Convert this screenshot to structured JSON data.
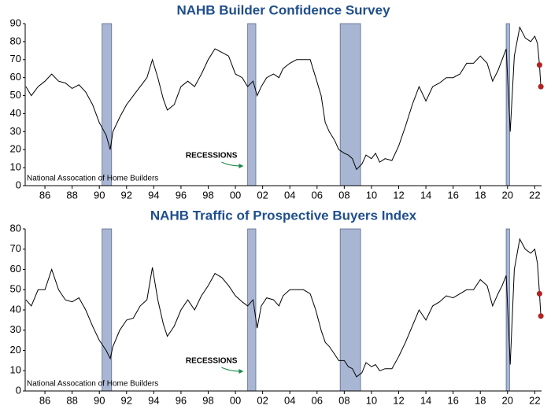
{
  "chart_data": [
    {
      "type": "line",
      "title": "NAHB Builder Confidence Survey",
      "source": "National Assocation of Home Builders",
      "annotation": "RECESSIONS",
      "x": [
        1984.6,
        1985,
        1985.5,
        1986,
        1986.5,
        1987,
        1987.5,
        1988,
        1988.5,
        1989,
        1989.5,
        1990,
        1990.5,
        1990.8,
        1991,
        1991.5,
        1992,
        1992.5,
        1993,
        1993.5,
        1993.9,
        1994.3,
        1994.7,
        1995,
        1995.5,
        1996,
        1996.5,
        1997,
        1997.5,
        1998,
        1998.5,
        1999,
        1999.5,
        2000,
        2000.5,
        2000.9,
        2001.3,
        2001.6,
        2001.9,
        2002.3,
        2002.8,
        2003.2,
        2003.5,
        2004,
        2004.5,
        2005,
        2005.5,
        2005.9,
        2006.3,
        2006.6,
        2006.9,
        2007.3,
        2007.6,
        2008,
        2008.3,
        2008.6,
        2008.9,
        2009.3,
        2009.6,
        2010,
        2010.3,
        2010.6,
        2011,
        2011.5,
        2012,
        2012.5,
        2013,
        2013.5,
        2014,
        2014.5,
        2015,
        2015.5,
        2016,
        2016.5,
        2017,
        2017.5,
        2018,
        2018.5,
        2018.9,
        2019.3,
        2019.6,
        2019.9,
        2020.2,
        2020.5,
        2020.9,
        2021.3,
        2021.7,
        2022,
        2022.2,
        2022.35,
        2022.45
      ],
      "series": [
        {
          "color": "#000000",
          "values": [
            55,
            50,
            55,
            58,
            62,
            58,
            57,
            54,
            56,
            52,
            45,
            35,
            28,
            20,
            30,
            38,
            45,
            50,
            55,
            60,
            70,
            60,
            48,
            42,
            45,
            55,
            58,
            55,
            62,
            70,
            76,
            74,
            72,
            62,
            60,
            55,
            58,
            50,
            55,
            60,
            62,
            60,
            65,
            68,
            70,
            70,
            70,
            60,
            50,
            35,
            30,
            25,
            20,
            18,
            17,
            15,
            9,
            12,
            17,
            15,
            18,
            13,
            15,
            14,
            22,
            33,
            45,
            55,
            47,
            55,
            57,
            60,
            60,
            62,
            68,
            68,
            72,
            68,
            58,
            64,
            70,
            76,
            30,
            72,
            88,
            82,
            80,
            83,
            79,
            67,
            55
          ]
        },
        {
          "color": "#b22222",
          "values": [
            null,
            null,
            null,
            null,
            null,
            null,
            null,
            null,
            null,
            null,
            null,
            null,
            null,
            null,
            null,
            null,
            null,
            null,
            null,
            null,
            null,
            null,
            null,
            null,
            null,
            null,
            null,
            null,
            null,
            null,
            null,
            null,
            null,
            null,
            null,
            null,
            null,
            null,
            null,
            null,
            null,
            null,
            null,
            null,
            null,
            null,
            null,
            null,
            null,
            null,
            null,
            null,
            null,
            null,
            null,
            null,
            null,
            null,
            null,
            null,
            null,
            null,
            null,
            null,
            null,
            null,
            null,
            null,
            null,
            null,
            null,
            null,
            null,
            null,
            null,
            null,
            null,
            null,
            null,
            null,
            null,
            null,
            null,
            null,
            null,
            null,
            null,
            null,
            null,
            67,
            55
          ],
          "style": "points"
        }
      ],
      "recessions": [
        {
          "start": 1990.2,
          "end": 1990.9
        },
        {
          "start": 2000.9,
          "end": 2001.5
        },
        {
          "start": 2007.7,
          "end": 2009.2
        },
        {
          "start": 2019.9,
          "end": 2020.15
        }
      ],
      "xlim": [
        1984.55,
        2022.5
      ],
      "ylim": [
        0,
        90
      ],
      "yticks": [
        0,
        10,
        20,
        30,
        40,
        50,
        60,
        70,
        80,
        90
      ],
      "xticks": [
        {
          "value": 1986,
          "label": "86"
        },
        {
          "value": 1988,
          "label": "88"
        },
        {
          "value": 1990,
          "label": "90"
        },
        {
          "value": 1992,
          "label": "92"
        },
        {
          "value": 1994,
          "label": "94"
        },
        {
          "value": 1996,
          "label": "96"
        },
        {
          "value": 1998,
          "label": "98"
        },
        {
          "value": 2000,
          "label": "00"
        },
        {
          "value": 2002,
          "label": "02"
        },
        {
          "value": 2004,
          "label": "04"
        },
        {
          "value": 2006,
          "label": "06"
        },
        {
          "value": 2008,
          "label": "08"
        },
        {
          "value": 2010,
          "label": "10"
        },
        {
          "value": 2012,
          "label": "12"
        },
        {
          "value": 2014,
          "label": "14"
        },
        {
          "value": 2016,
          "label": "16"
        },
        {
          "value": 2018,
          "label": "18"
        },
        {
          "value": 2020,
          "label": "20"
        },
        {
          "value": 2022,
          "label": "22"
        }
      ],
      "recession_color": "#a9b6d3",
      "annotation_color": "#1a8a4a"
    },
    {
      "type": "line",
      "title": "NAHB Traffic of Prospective Buyers Index",
      "source": "National Assocation of Home Builders",
      "annotation": "RECESSIONS",
      "x": [
        1984.6,
        1985,
        1985.5,
        1986,
        1986.5,
        1987,
        1987.5,
        1988,
        1988.5,
        1989,
        1989.5,
        1990,
        1990.5,
        1990.8,
        1991,
        1991.5,
        1992,
        1992.5,
        1993,
        1993.5,
        1993.9,
        1994.3,
        1994.7,
        1995,
        1995.5,
        1996,
        1996.5,
        1997,
        1997.5,
        1998,
        1998.5,
        1999,
        1999.5,
        2000,
        2000.5,
        2000.9,
        2001.3,
        2001.6,
        2001.9,
        2002.3,
        2002.8,
        2003.2,
        2003.5,
        2004,
        2004.5,
        2005,
        2005.5,
        2005.9,
        2006.3,
        2006.6,
        2006.9,
        2007.3,
        2007.6,
        2008,
        2008.3,
        2008.6,
        2008.9,
        2009.3,
        2009.6,
        2010,
        2010.3,
        2010.6,
        2011,
        2011.5,
        2012,
        2012.5,
        2013,
        2013.5,
        2014,
        2014.5,
        2015,
        2015.5,
        2016,
        2016.5,
        2017,
        2017.5,
        2018,
        2018.5,
        2018.9,
        2019.3,
        2019.6,
        2019.9,
        2020.2,
        2020.5,
        2020.9,
        2021.3,
        2021.7,
        2022,
        2022.2,
        2022.35,
        2022.45
      ],
      "series": [
        {
          "color": "#000000",
          "values": [
            45,
            42,
            50,
            50,
            60,
            50,
            45,
            44,
            46,
            40,
            32,
            25,
            20,
            16,
            22,
            30,
            35,
            36,
            42,
            45,
            61,
            45,
            33,
            27,
            32,
            40,
            45,
            40,
            47,
            52,
            58,
            56,
            52,
            47,
            44,
            42,
            45,
            31,
            42,
            46,
            45,
            42,
            47,
            50,
            50,
            50,
            48,
            40,
            30,
            24,
            22,
            18,
            15,
            15,
            12,
            11,
            7,
            9,
            14,
            12,
            13,
            10,
            11,
            11,
            17,
            24,
            32,
            40,
            35,
            42,
            44,
            47,
            46,
            48,
            50,
            50,
            55,
            52,
            42,
            48,
            52,
            57,
            13,
            60,
            75,
            70,
            68,
            70,
            63,
            48,
            37
          ]
        },
        {
          "color": "#b22222",
          "values": [
            null,
            null,
            null,
            null,
            null,
            null,
            null,
            null,
            null,
            null,
            null,
            null,
            null,
            null,
            null,
            null,
            null,
            null,
            null,
            null,
            null,
            null,
            null,
            null,
            null,
            null,
            null,
            null,
            null,
            null,
            null,
            null,
            null,
            null,
            null,
            null,
            null,
            null,
            null,
            null,
            null,
            null,
            null,
            null,
            null,
            null,
            null,
            null,
            null,
            null,
            null,
            null,
            null,
            null,
            null,
            null,
            null,
            null,
            null,
            null,
            null,
            null,
            null,
            null,
            null,
            null,
            null,
            null,
            null,
            null,
            null,
            null,
            null,
            null,
            null,
            null,
            null,
            null,
            null,
            null,
            null,
            null,
            null,
            null,
            null,
            null,
            null,
            null,
            null,
            48,
            37
          ],
          "style": "points"
        }
      ],
      "recessions": [
        {
          "start": 1990.2,
          "end": 1990.9
        },
        {
          "start": 2000.9,
          "end": 2001.5
        },
        {
          "start": 2007.7,
          "end": 2009.2
        },
        {
          "start": 2019.9,
          "end": 2020.15
        }
      ],
      "xlim": [
        1984.55,
        2022.5
      ],
      "ylim": [
        0,
        80
      ],
      "yticks": [
        0,
        10,
        20,
        30,
        40,
        50,
        60,
        70,
        80
      ],
      "xticks": [
        {
          "value": 1986,
          "label": "86"
        },
        {
          "value": 1988,
          "label": "88"
        },
        {
          "value": 1990,
          "label": "90"
        },
        {
          "value": 1992,
          "label": "92"
        },
        {
          "value": 1994,
          "label": "94"
        },
        {
          "value": 1996,
          "label": "96"
        },
        {
          "value": 1998,
          "label": "98"
        },
        {
          "value": 2000,
          "label": "00"
        },
        {
          "value": 2002,
          "label": "02"
        },
        {
          "value": 2004,
          "label": "04"
        },
        {
          "value": 2006,
          "label": "06"
        },
        {
          "value": 2008,
          "label": "08"
        },
        {
          "value": 2010,
          "label": "10"
        },
        {
          "value": 2012,
          "label": "12"
        },
        {
          "value": 2014,
          "label": "14"
        },
        {
          "value": 2016,
          "label": "16"
        },
        {
          "value": 2018,
          "label": "18"
        },
        {
          "value": 2020,
          "label": "20"
        },
        {
          "value": 2022,
          "label": "22"
        }
      ],
      "recession_color": "#a9b6d3",
      "annotation_color": "#1a8a4a"
    }
  ]
}
